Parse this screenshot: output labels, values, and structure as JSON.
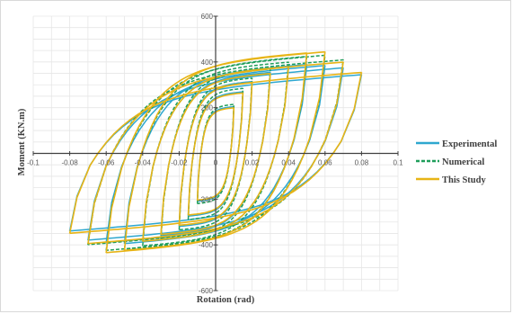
{
  "chart_data": {
    "type": "line",
    "title": "",
    "xlabel": "Rotation (rad)",
    "ylabel": "Moment (KN.m)",
    "xlim": [
      -0.1,
      0.1
    ],
    "ylim": [
      -600,
      600
    ],
    "x_ticks": [
      -0.1,
      -0.08,
      -0.06,
      -0.04,
      -0.02,
      0,
      0.02,
      0.04,
      0.06,
      0.08,
      0.1
    ],
    "x_tick_labels": [
      "-0.1",
      "-0.08",
      "-0.06",
      "-0.04",
      "-0.02",
      "0",
      "0.02",
      "0.04",
      "0.06",
      "0.08",
      "0.1"
    ],
    "y_ticks": [
      -600,
      -400,
      -200,
      0,
      200,
      400,
      600
    ],
    "y_tick_labels": [
      "-600",
      "-400",
      "-200",
      "0",
      "200",
      "400",
      "600"
    ],
    "grid": true,
    "legend_position": "right",
    "series": [
      {
        "name": "Experimental",
        "color": "#2ea7cf",
        "dash": "solid",
        "loops": [
          {
            "amplitude": 0.01,
            "moment_max": 205,
            "moment_min": -210
          },
          {
            "amplitude": 0.015,
            "moment_max": 270,
            "moment_min": -275
          },
          {
            "amplitude": 0.02,
            "moment_max": 315,
            "moment_min": -320
          },
          {
            "amplitude": 0.03,
            "moment_max": 355,
            "moment_min": -360
          },
          {
            "amplitude": 0.04,
            "moment_max": 380,
            "moment_min": -385
          },
          {
            "amplitude": 0.05,
            "moment_max": 390,
            "moment_min": -395
          },
          {
            "amplitude": 0.06,
            "moment_max": 385,
            "moment_min": -390
          },
          {
            "amplitude": 0.07,
            "moment_max": 375,
            "moment_min": -380
          },
          {
            "amplitude": 0.08,
            "moment_max": 345,
            "moment_min": -340
          }
        ]
      },
      {
        "name": "Numerical",
        "color": "#1f9e5b",
        "dash": "dashed",
        "loops": [
          {
            "amplitude": 0.01,
            "moment_max": 215,
            "moment_min": -220
          },
          {
            "amplitude": 0.015,
            "moment_max": 285,
            "moment_min": -290
          },
          {
            "amplitude": 0.02,
            "moment_max": 330,
            "moment_min": -335
          },
          {
            "amplitude": 0.03,
            "moment_max": 370,
            "moment_min": -375
          },
          {
            "amplitude": 0.04,
            "moment_max": 400,
            "moment_min": -405
          },
          {
            "amplitude": 0.05,
            "moment_max": 425,
            "moment_min": -420
          },
          {
            "amplitude": 0.06,
            "moment_max": 430,
            "moment_min": -425
          },
          {
            "amplitude": 0.07,
            "moment_max": 410,
            "moment_min": -400
          }
        ]
      },
      {
        "name": "This Study",
        "color": "#e7b416",
        "dash": "solid",
        "loops": [
          {
            "amplitude": 0.01,
            "moment_max": 200,
            "moment_min": -205
          },
          {
            "amplitude": 0.015,
            "moment_max": 265,
            "moment_min": -270
          },
          {
            "amplitude": 0.02,
            "moment_max": 310,
            "moment_min": -315
          },
          {
            "amplitude": 0.03,
            "moment_max": 350,
            "moment_min": -355
          },
          {
            "amplitude": 0.04,
            "moment_max": 380,
            "moment_min": -385
          },
          {
            "amplitude": 0.05,
            "moment_max": 440,
            "moment_min": -425
          },
          {
            "amplitude": 0.06,
            "moment_max": 445,
            "moment_min": -435
          },
          {
            "amplitude": 0.07,
            "moment_max": 400,
            "moment_min": -395
          },
          {
            "amplitude": 0.08,
            "moment_max": 355,
            "moment_min": -350
          }
        ]
      }
    ]
  }
}
